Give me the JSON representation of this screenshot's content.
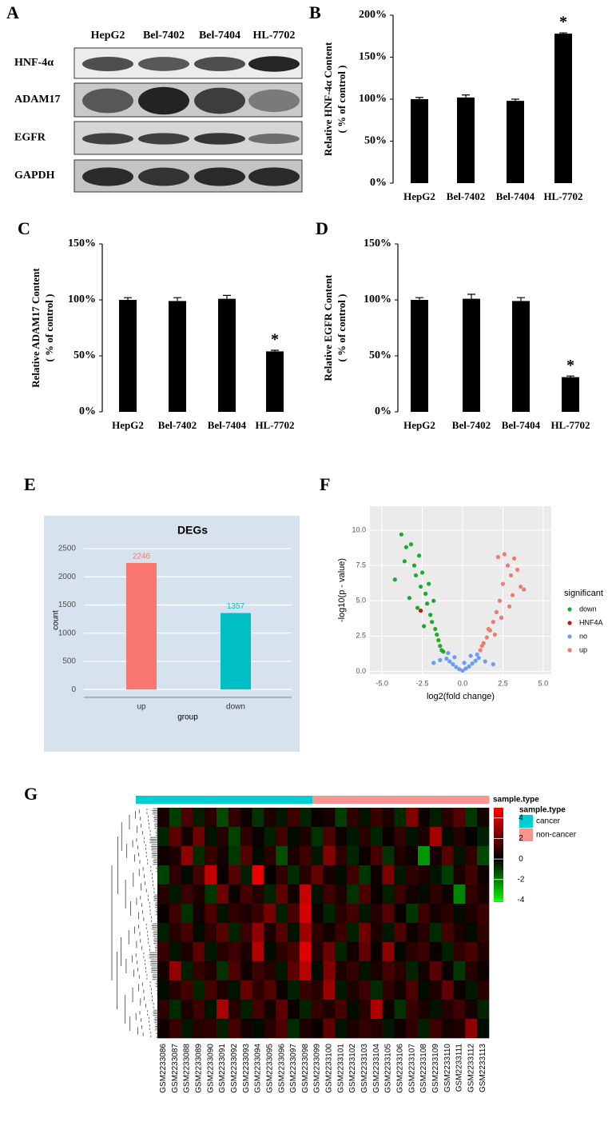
{
  "blot": {
    "panel_label": "A",
    "columns": [
      "HepG2",
      "Bel-7402",
      "Bel-7404",
      "HL-7702"
    ],
    "rows": [
      "HNF-4α",
      "ADAM17",
      "EGFR",
      "GAPDH"
    ]
  },
  "chart_data": [
    {
      "type": "bar",
      "panel_label": "B",
      "ylabel": [
        "Relative HNF-4α Content",
        "( % of control )"
      ],
      "categories": [
        "HepG2",
        "Bel-7402",
        "Bel-7404",
        "HL-7702"
      ],
      "values": [
        100,
        102,
        98,
        178
      ],
      "errors": [
        2,
        3,
        2,
        1
      ],
      "significance": [
        null,
        null,
        null,
        "*"
      ],
      "color": "#000000",
      "ylim": [
        0,
        200
      ],
      "yticks": [
        {
          "value": 0,
          "label": "0%"
        },
        {
          "value": 50,
          "label": "50%"
        },
        {
          "value": 100,
          "label": "100%"
        },
        {
          "value": 150,
          "label": "150%"
        },
        {
          "value": 200,
          "label": "200%"
        }
      ]
    },
    {
      "type": "bar",
      "panel_label": "C",
      "ylabel": [
        "Relative ADAM17 Content",
        "( % of control )"
      ],
      "categories": [
        "HepG2",
        "Bel-7402",
        "Bel-7404",
        "HL-7702"
      ],
      "values": [
        100,
        99,
        101,
        54
      ],
      "errors": [
        2,
        3,
        3,
        1
      ],
      "significance": [
        null,
        null,
        null,
        "*"
      ],
      "color": "#000000",
      "ylim": [
        0,
        150
      ],
      "yticks": [
        {
          "value": 0,
          "label": "0%"
        },
        {
          "value": 50,
          "label": "50%"
        },
        {
          "value": 100,
          "label": "100%"
        },
        {
          "value": 150,
          "label": "150%"
        }
      ]
    },
    {
      "type": "bar",
      "panel_label": "D",
      "ylabel": [
        "Relative EGFR Content",
        "( % of control )"
      ],
      "categories": [
        "HepG2",
        "Bel-7402",
        "Bel-7404",
        "HL-7702"
      ],
      "values": [
        100,
        101,
        99,
        31
      ],
      "errors": [
        2,
        4,
        3,
        1
      ],
      "significance": [
        null,
        null,
        null,
        "*"
      ],
      "color": "#000000",
      "ylim": [
        0,
        150
      ],
      "yticks": [
        {
          "value": 0,
          "label": "0%"
        },
        {
          "value": 50,
          "label": "50%"
        },
        {
          "value": 100,
          "label": "100%"
        },
        {
          "value": 150,
          "label": "150%"
        }
      ]
    },
    {
      "type": "bar",
      "panel_label": "E",
      "title": "DEGs",
      "xlabel": "group",
      "ylabel": "count",
      "categories": [
        "up",
        "down"
      ],
      "values": [
        2246,
        1357
      ],
      "colors": [
        "#f8766d",
        "#00bfc4"
      ],
      "background": "#d6e3ee",
      "ylim": [
        -140,
        2600
      ],
      "yticks": [
        0,
        500,
        1000,
        1500,
        2000,
        2500
      ],
      "grid": true
    },
    {
      "type": "scatter",
      "panel_label": "F",
      "xlabel": "log2(fold change)",
      "ylabel": "-log10(p - value)",
      "legend_title": "significant",
      "background": "#ebebeb",
      "grid": true,
      "xlim": [
        -5.75,
        5.5
      ],
      "ylim": [
        -0.2,
        11.7
      ],
      "xticks": [
        {
          "value": -5,
          "label": "-5.0"
        },
        {
          "value": -2.5,
          "label": "-2.5"
        },
        {
          "value": 0,
          "label": "0.0"
        },
        {
          "value": 2.5,
          "label": "2.5"
        },
        {
          "value": 5,
          "label": "5.0"
        }
      ],
      "yticks": [
        {
          "value": 0,
          "label": "0.0"
        },
        {
          "value": 2.5,
          "label": "2.5"
        },
        {
          "value": 5,
          "label": "5.0"
        },
        {
          "value": 7.5,
          "label": "7.5"
        },
        {
          "value": 10,
          "label": "10.0"
        }
      ],
      "series": [
        {
          "name": "down",
          "color": "#1fa82e",
          "x": [
            -3.8,
            -3.5,
            -3.2,
            -3.0,
            -2.9,
            -2.7,
            -2.6,
            -2.5,
            -2.3,
            -2.2,
            -2.1,
            -2.0,
            -1.9,
            -1.8,
            -1.7,
            -1.6,
            -1.5,
            -1.4,
            -1.3,
            -3.3,
            -2.8,
            -2.4,
            -4.2,
            -3.6,
            -1.2
          ],
          "values": [
            9.7,
            8.8,
            9.0,
            7.5,
            6.8,
            8.2,
            6.0,
            7.0,
            5.5,
            4.8,
            6.2,
            4.0,
            3.5,
            5.0,
            3.0,
            2.6,
            2.2,
            1.8,
            1.5,
            5.2,
            4.5,
            3.2,
            6.5,
            7.8,
            1.4
          ]
        },
        {
          "name": "HNF4A",
          "color": "#c0171b",
          "x": [
            -2.6
          ],
          "values": [
            4.3
          ]
        },
        {
          "name": "no",
          "color": "#6a9df0",
          "x": [
            -1.4,
            -1.0,
            -0.8,
            -0.6,
            -0.4,
            -0.2,
            0.0,
            0.2,
            0.4,
            0.6,
            0.8,
            1.0,
            1.4,
            -1.8,
            1.9,
            -0.5,
            0.5,
            -0.9,
            0.9,
            0.1
          ],
          "values": [
            0.8,
            0.9,
            0.7,
            0.5,
            0.3,
            0.15,
            0.05,
            0.2,
            0.35,
            0.55,
            0.75,
            0.95,
            0.7,
            0.6,
            0.5,
            1.0,
            1.1,
            1.3,
            1.2,
            0.6
          ]
        },
        {
          "name": "up",
          "color": "#f07a70",
          "x": [
            1.1,
            1.3,
            1.5,
            1.7,
            1.9,
            2.1,
            2.3,
            2.5,
            2.6,
            2.8,
            3.0,
            3.2,
            3.4,
            3.6,
            3.8,
            2.0,
            2.4,
            2.9,
            1.2,
            1.6,
            3.1,
            2.2
          ],
          "values": [
            1.5,
            2.0,
            2.4,
            2.9,
            3.5,
            4.2,
            5.0,
            6.2,
            8.3,
            7.5,
            6.8,
            8.0,
            7.2,
            6.0,
            5.8,
            2.6,
            3.8,
            4.6,
            1.8,
            3.0,
            5.4,
            8.1
          ]
        }
      ]
    },
    {
      "type": "heatmap",
      "panel_label": "G",
      "annotation_label": "sample.type",
      "legend_title": "sample.type",
      "legend": [
        {
          "name": "cancer",
          "color": "#00ced1"
        },
        {
          "name": "non-cancer",
          "color": "#f4978e"
        }
      ],
      "columns": [
        "GSM2233086",
        "GSM2233087",
        "GSM2233088",
        "GSM2233089",
        "GSM2233090",
        "GSM2233091",
        "GSM2233092",
        "GSM2233093",
        "GSM2233094",
        "GSM2233095",
        "GSM2233096",
        "GSM2233097",
        "GSM2233098",
        "GSM2233099",
        "GSM2233100",
        "GSM2233101",
        "GSM2233102",
        "GSM2233103",
        "GSM2233104",
        "GSM2233105",
        "GSM2233106",
        "GSM2233107",
        "GSM2233108",
        "GSM2233109",
        "GSM2233110",
        "GSM2233111",
        "GSM2233112",
        "GSM2233113"
      ],
      "sample_type": [
        "cancer",
        "cancer",
        "cancer",
        "cancer",
        "cancer",
        "cancer",
        "cancer",
        "cancer",
        "cancer",
        "cancer",
        "cancer",
        "cancer",
        "cancer",
        "cancer",
        "non-cancer",
        "non-cancer",
        "non-cancer",
        "non-cancer",
        "non-cancer",
        "non-cancer",
        "non-cancer",
        "non-cancer",
        "non-cancer",
        "non-cancer",
        "non-cancer",
        "non-cancer",
        "non-cancer",
        "non-cancer"
      ],
      "clim": [
        -4.2,
        5
      ],
      "cticks": [
        4,
        2,
        0,
        -2,
        -4
      ],
      "values": [
        [
          0.5,
          -1,
          1.5,
          -0.5,
          0.8,
          -1.2,
          1,
          0.3,
          -0.8,
          0.6,
          -0.4,
          1.2,
          -0.6,
          0.2,
          0.4,
          -1,
          0.9,
          -0.3,
          1.1,
          0.5,
          -0.7,
          2.5,
          0.3,
          -0.5,
          0.8,
          1.6,
          -0.9,
          0.4
        ],
        [
          -0.6,
          1.8,
          0.4,
          2.2,
          -0.3,
          0.7,
          -1.1,
          0.9,
          0.2,
          -0.5,
          1.3,
          -0.2,
          0.6,
          -0.8,
          1.5,
          0.3,
          -0.4,
          0.8,
          -0.6,
          0.2,
          1,
          -0.3,
          0.5,
          3.2,
          -0.2,
          0.7,
          0.1,
          -0.5
        ],
        [
          0.3,
          0.6,
          2.8,
          -0.7,
          1.1,
          0.4,
          -0.9,
          1.6,
          -0.2,
          0.8,
          -1.3,
          0.5,
          1.2,
          -0.4,
          2.6,
          0.9,
          -0.6,
          0.2,
          1.4,
          -0.8,
          0.6,
          0.3,
          -2.5,
          0.4,
          1.7,
          -0.3,
          0.9,
          -1.2
        ],
        [
          -1.1,
          0.9,
          -0.2,
          1.3,
          3.8,
          0.2,
          1.7,
          -0.5,
          4.5,
          0.1,
          1,
          -0.7,
          0.8,
          1.9,
          0.5,
          -0.2,
          1.2,
          -0.9,
          0.3,
          2.4,
          -0.4,
          0.9,
          0.6,
          -0.3,
          -1,
          0.5,
          1.3,
          0.2
        ],
        [
          0.8,
          -0.4,
          1.1,
          0.6,
          -0.9,
          2.1,
          0.3,
          1.4,
          0.7,
          -0.6,
          1.8,
          0.4,
          3.9,
          -0.3,
          1.2,
          0.6,
          -0.8,
          1.5,
          0.2,
          -0.5,
          1.1,
          0.4,
          -0.2,
          0.9,
          0.3,
          -2.2,
          1,
          0.5
        ],
        [
          0.2,
          1.2,
          -0.8,
          0.4,
          1.5,
          -0.3,
          0.9,
          0.6,
          1.1,
          2.3,
          -0.5,
          1.4,
          4.2,
          0.3,
          -0.6,
          0.8,
          1.3,
          -0.4,
          0.7,
          1.6,
          0.2,
          -0.9,
          1.2,
          0.4,
          0.8,
          -0.2,
          0.6,
          1.1
        ],
        [
          -0.5,
          0.7,
          1.4,
          -0.2,
          0.9,
          1.7,
          -0.6,
          1.2,
          2.8,
          0.5,
          1.6,
          -0.3,
          3.1,
          0.9,
          0.4,
          1.1,
          -0.5,
          2.2,
          0.6,
          -0.4,
          1.5,
          0.3,
          0.8,
          -0.7,
          1.3,
          0.5,
          -0.2,
          0.9
        ],
        [
          1.1,
          -0.3,
          0.6,
          1.8,
          -0.4,
          0.8,
          1.2,
          0.5,
          3.5,
          -0.2,
          0.9,
          1.4,
          4.4,
          0.7,
          2.1,
          -0.6,
          0.4,
          1.9,
          0.3,
          2.7,
          -0.1,
          0.8,
          1.1,
          0.2,
          -0.5,
          0.9,
          1.4,
          0.6
        ],
        [
          0.4,
          2.9,
          -0.5,
          1,
          0.6,
          -0.8,
          1.5,
          0.3,
          1.2,
          0.7,
          -0.4,
          1.8,
          3.6,
          -0.2,
          2.5,
          0.6,
          1,
          -0.3,
          0.5,
          1.3,
          0.8,
          -0.6,
          0.4,
          1.7,
          0.2,
          -0.9,
          0.7,
          0.3
        ],
        [
          -0.2,
          0.8,
          1.3,
          -0.6,
          1.4,
          0.5,
          -0.3,
          2,
          0.9,
          1.6,
          0.2,
          -0.5,
          1.1,
          0.8,
          3,
          -0.4,
          0.6,
          1.2,
          -0.7,
          0.9,
          0.4,
          1.5,
          -0.2,
          0.6,
          1.9,
          0.3,
          -0.4,
          0.8
        ],
        [
          0.9,
          -0.7,
          0.5,
          1.2,
          -0.3,
          3.3,
          0.7,
          -0.5,
          1.3,
          0.4,
          1.8,
          0.2,
          -0.6,
          1,
          0.6,
          1.4,
          -0.2,
          0.8,
          3.4,
          0.3,
          -0.8,
          1.1,
          0.5,
          -0.3,
          0.7,
          1.2,
          0.4,
          -0.6
        ],
        [
          0.3,
          1.1,
          -0.4,
          0.7,
          0.9,
          -0.5,
          1.3,
          0.4,
          -0.2,
          0.8,
          1.5,
          -0.7,
          0.6,
          0.2,
          1.9,
          -0.3,
          0.5,
          1,
          0.7,
          -0.4,
          0.3,
          0.9,
          -0.5,
          1.2,
          0.4,
          0.6,
          2.8,
          -0.2
        ]
      ]
    }
  ]
}
